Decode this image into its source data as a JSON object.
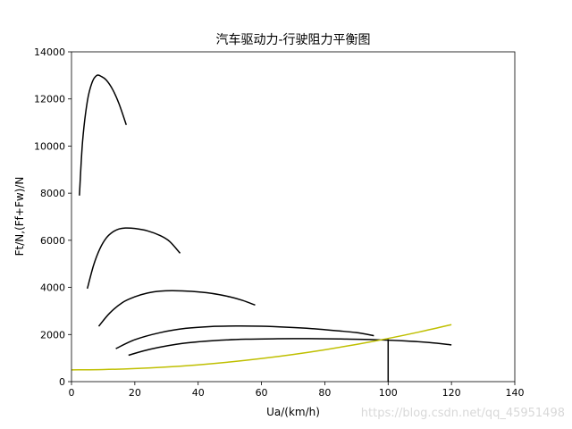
{
  "chart_data": {
    "type": "line",
    "title": "汽车驱动力-行驶阻力平衡图",
    "xlabel": "Ua/(km/h)",
    "ylabel": "Ft/N,(Ff+Fw)/N",
    "xlim": [
      0,
      140
    ],
    "ylim": [
      0,
      14000
    ],
    "xticks": [
      0,
      20,
      40,
      60,
      80,
      100,
      120,
      140
    ],
    "yticks": [
      0,
      2000,
      4000,
      6000,
      8000,
      10000,
      12000,
      14000
    ],
    "grid": false,
    "series": [
      {
        "color": "#000000",
        "x": [
          2.5,
          3.5,
          5,
          6.5,
          8,
          9.5,
          11,
          13,
          15,
          17.3
        ],
        "y": [
          7900,
          10200,
          11900,
          12700,
          13000,
          12950,
          12800,
          12400,
          11800,
          10900
        ]
      },
      {
        "color": "#000000",
        "x": [
          5,
          7,
          9,
          11,
          13,
          15,
          17,
          20,
          24,
          28,
          31,
          34.3
        ],
        "y": [
          3950,
          4950,
          5650,
          6100,
          6350,
          6480,
          6520,
          6500,
          6400,
          6200,
          5950,
          5450
        ]
      },
      {
        "color": "#000000",
        "x": [
          8.6,
          12,
          16,
          20,
          24,
          28,
          32,
          38,
          44,
          50,
          54,
          58
        ],
        "y": [
          2350,
          2900,
          3350,
          3600,
          3760,
          3840,
          3860,
          3830,
          3750,
          3600,
          3450,
          3250
        ]
      },
      {
        "color": "#000000",
        "x": [
          14,
          20,
          28,
          36,
          44,
          52,
          60,
          68,
          76,
          84,
          90,
          95.5
        ],
        "y": [
          1400,
          1780,
          2080,
          2260,
          2340,
          2360,
          2350,
          2310,
          2250,
          2160,
          2080,
          1950
        ]
      },
      {
        "color": "#000000",
        "x": [
          18,
          25,
          35,
          45,
          55,
          65,
          75,
          85,
          95,
          105,
          113,
          120
        ],
        "y": [
          1120,
          1380,
          1620,
          1740,
          1800,
          1820,
          1825,
          1810,
          1785,
          1730,
          1660,
          1560
        ]
      },
      {
        "color": "#bfbf00",
        "x": [
          0,
          10,
          20,
          30,
          40,
          50,
          60,
          70,
          80,
          90,
          100,
          110,
          120
        ],
        "y": [
          500,
          513,
          553,
          620,
          713,
          833,
          980,
          1153,
          1353,
          1580,
          1833,
          2113,
          2420
        ]
      }
    ],
    "annotation": {
      "type": "vline",
      "x": 100,
      "y_from": 0,
      "y_to": 1800,
      "color": "#000000"
    }
  },
  "watermark": "https://blog.csdn.net/qq_45951498"
}
